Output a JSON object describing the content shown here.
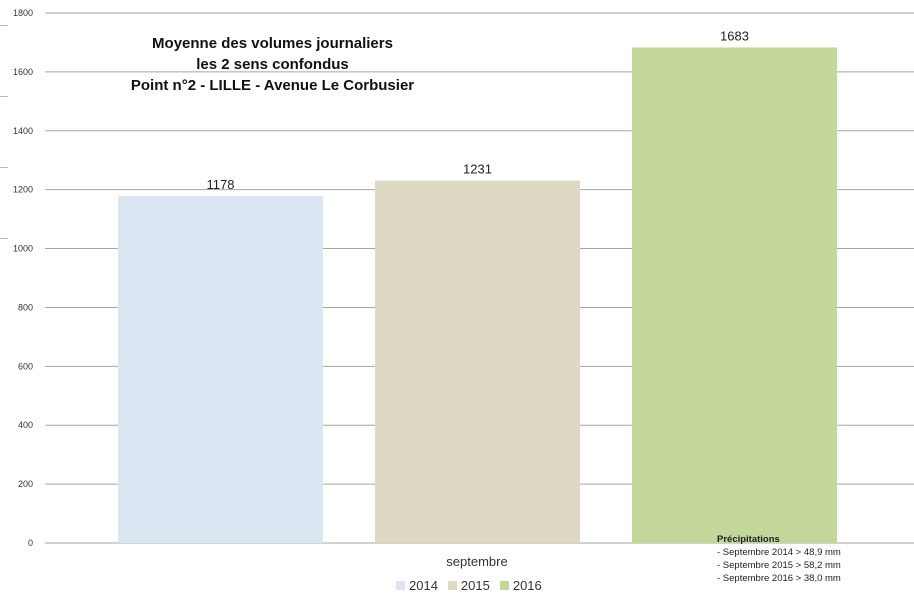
{
  "chart_data": {
    "type": "bar",
    "title_lines": [
      "Moyenne des volumes journaliers",
      "les 2 sens confondus",
      "Point n°2 - LILLE - Avenue Le Corbusier"
    ],
    "categories": [
      "septembre"
    ],
    "series": [
      {
        "name": "2014",
        "values": [
          1178
        ],
        "color": "#dce6f2"
      },
      {
        "name": "2015",
        "values": [
          1231
        ],
        "color": "#ddd9c4"
      },
      {
        "name": "2016",
        "values": [
          1683
        ],
        "color": "#c4d79b"
      }
    ],
    "ylim": [
      0,
      1800
    ],
    "yticks": [
      0,
      200,
      400,
      600,
      800,
      1000,
      1200,
      1400,
      1600,
      1800
    ],
    "grid": true,
    "legend_position": "bottom"
  },
  "annotation": {
    "heading": "Précipitations",
    "lines": [
      "- Septembre 2014  > 48,9 mm",
      "- Septembre 2015  > 58,2 mm",
      "- Septembre 2016  > 38,0 mm"
    ]
  },
  "colors": {
    "gridline": "#a6a6a6",
    "axis_text": "#333333"
  }
}
